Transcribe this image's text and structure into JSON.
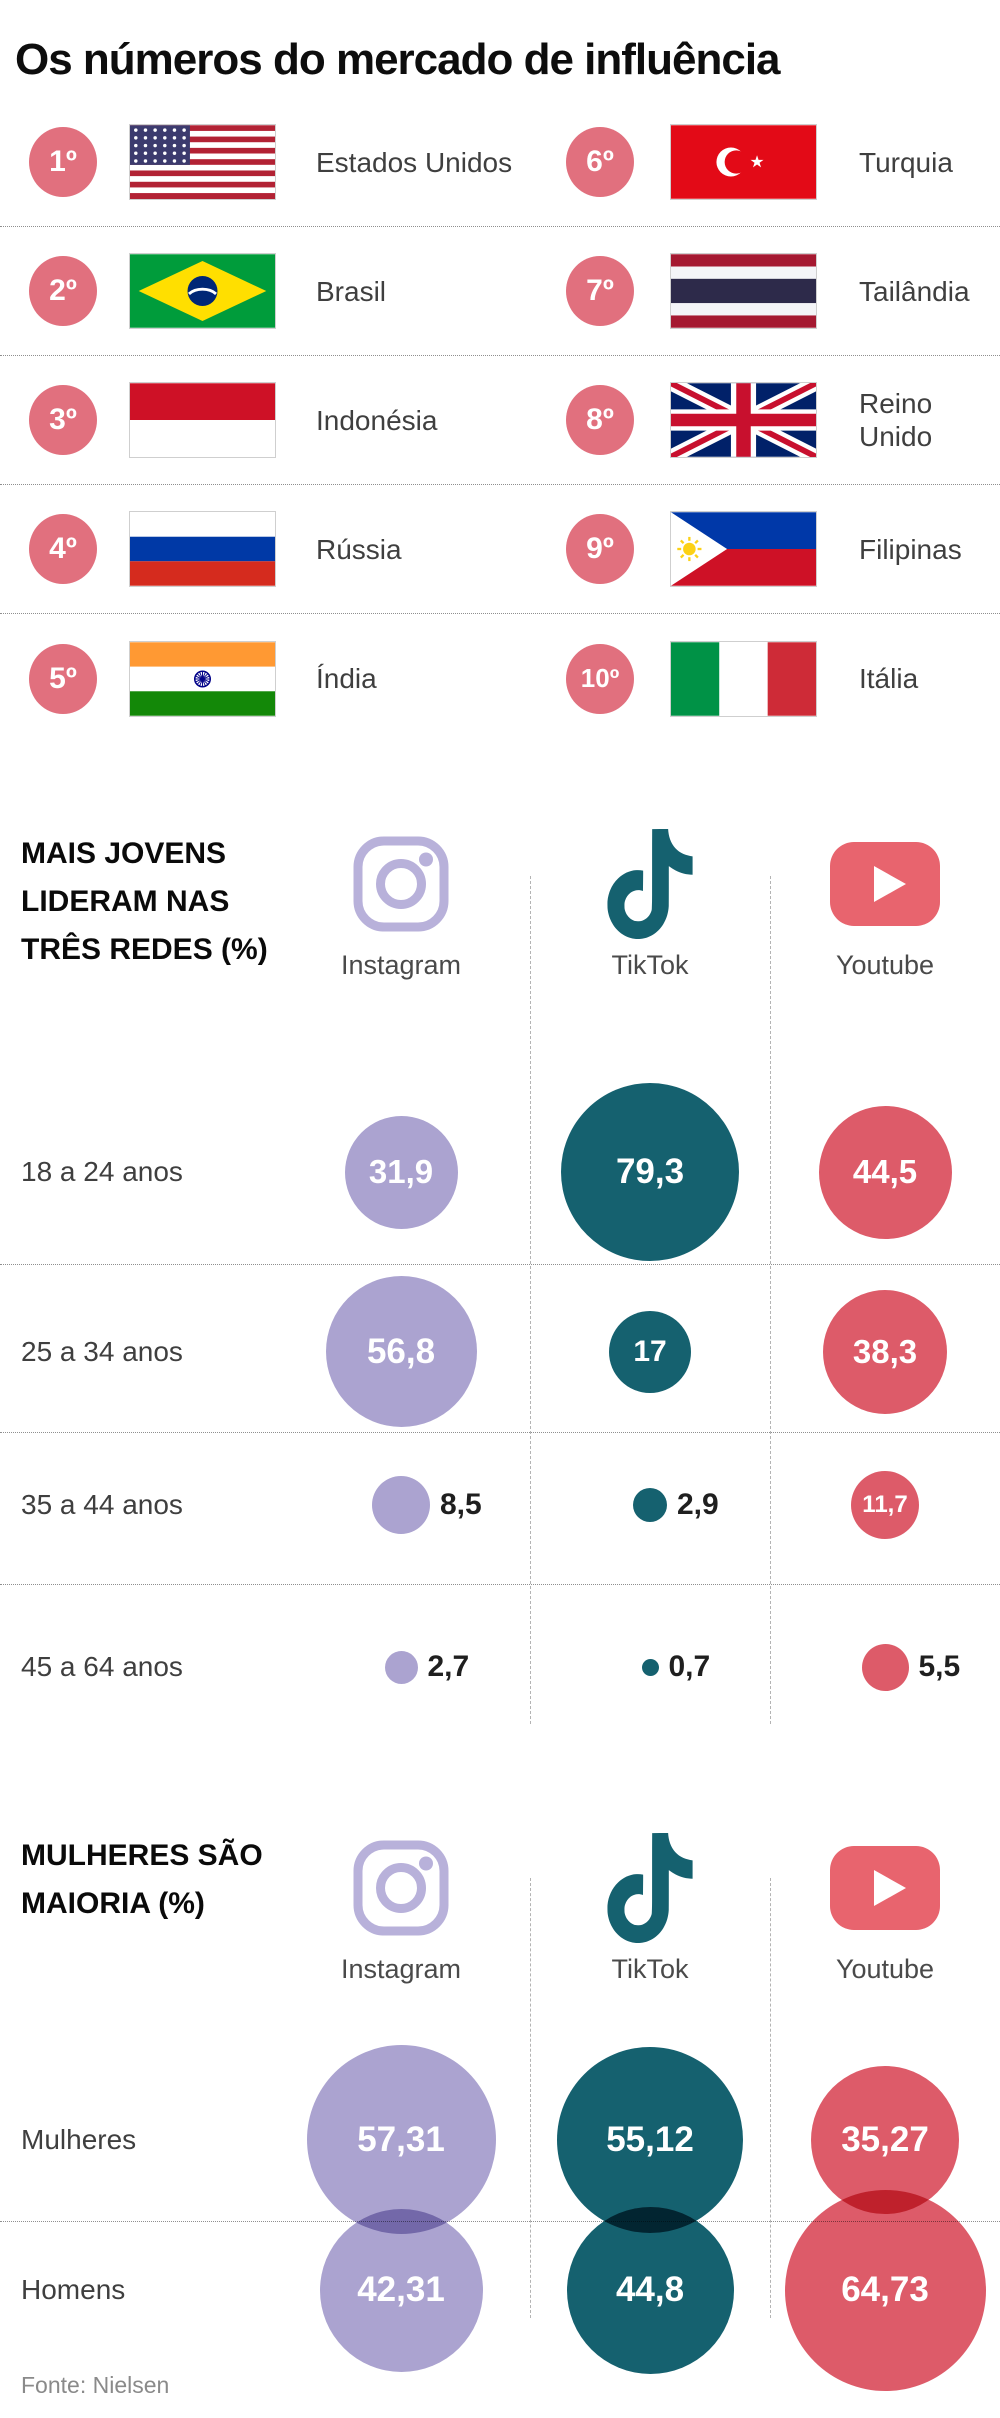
{
  "title": "Os números do mercado de influência",
  "colors": {
    "badge_rose": "#e1707e",
    "instagram_lavender": "#aba3d0",
    "instagram_icon_lavender": "#b8b1da",
    "tiktok_teal": "#15616f",
    "youtube_red": "#dd5b69",
    "youtube_icon_red": "#e8646e"
  },
  "ranking": {
    "items": [
      {
        "rank": "1º",
        "country": "Estados Unidos",
        "flag": "us"
      },
      {
        "rank": "2º",
        "country": "Brasil",
        "flag": "br"
      },
      {
        "rank": "3º",
        "country": "Indonésia",
        "flag": "id"
      },
      {
        "rank": "4º",
        "country": "Rússia",
        "flag": "ru"
      },
      {
        "rank": "5º",
        "country": "Índia",
        "flag": "in"
      },
      {
        "rank": "6º",
        "country": "Turquia",
        "flag": "tr"
      },
      {
        "rank": "7º",
        "country": "Tailândia",
        "flag": "th"
      },
      {
        "rank": "8º",
        "country": "Reino Unido",
        "flag": "gb"
      },
      {
        "rank": "9º",
        "country": "Filipinas",
        "flag": "ph"
      },
      {
        "rank": "10º",
        "country": "Itália",
        "flag": "it"
      }
    ]
  },
  "networks": [
    {
      "name": "Instagram",
      "icon": "instagram-icon"
    },
    {
      "name": "TikTok",
      "icon": "tiktok-icon"
    },
    {
      "name": "Youtube",
      "icon": "youtube-icon"
    }
  ],
  "chart_data": [
    {
      "type": "bubble",
      "title": "MAIS JOVENS LIDERAM NAS TRÊS REDES (%)",
      "title_lines": [
        "MAIS JOVENS",
        "LIDERAM NAS",
        "TRÊS REDES (%)"
      ],
      "columns": [
        "Instagram",
        "TikTok",
        "Youtube"
      ],
      "categories": [
        "18 a 24 anos",
        "25 a 34 anos",
        "35 a 44 anos",
        "45 a 64 anos"
      ],
      "series": [
        {
          "name": "Instagram",
          "values": [
            31.9,
            56.8,
            8.5,
            2.7
          ]
        },
        {
          "name": "TikTok",
          "values": [
            79.3,
            17,
            2.9,
            0.7
          ]
        },
        {
          "name": "Youtube",
          "values": [
            44.5,
            38.3,
            11.7,
            5.5
          ]
        }
      ],
      "value_labels": [
        [
          "31,9",
          "56,8",
          "8,5",
          "2,7"
        ],
        [
          "79,3",
          "17",
          "2,9",
          "0,7"
        ],
        [
          "44,5",
          "38,3",
          "11,7",
          "5,5"
        ]
      ],
      "unit": "%"
    },
    {
      "type": "bubble",
      "title": "MULHERES SÃO MAIORIA (%)",
      "title_lines": [
        "MULHERES SÃO",
        "MAIORIA (%)"
      ],
      "columns": [
        "Instagram",
        "TikTok",
        "Youtube"
      ],
      "categories": [
        "Mulheres",
        "Homens"
      ],
      "series": [
        {
          "name": "Instagram",
          "values": [
            57.31,
            42.31
          ]
        },
        {
          "name": "TikTok",
          "values": [
            55.12,
            44.8
          ]
        },
        {
          "name": "Youtube",
          "values": [
            35.27,
            64.73
          ]
        }
      ],
      "value_labels": [
        [
          "57,31",
          "42,31"
        ],
        [
          "55,12",
          "44,8"
        ],
        [
          "35,27",
          "64,73"
        ]
      ],
      "unit": "%"
    }
  ],
  "footer": {
    "source": "Fonte: Nielsen"
  }
}
